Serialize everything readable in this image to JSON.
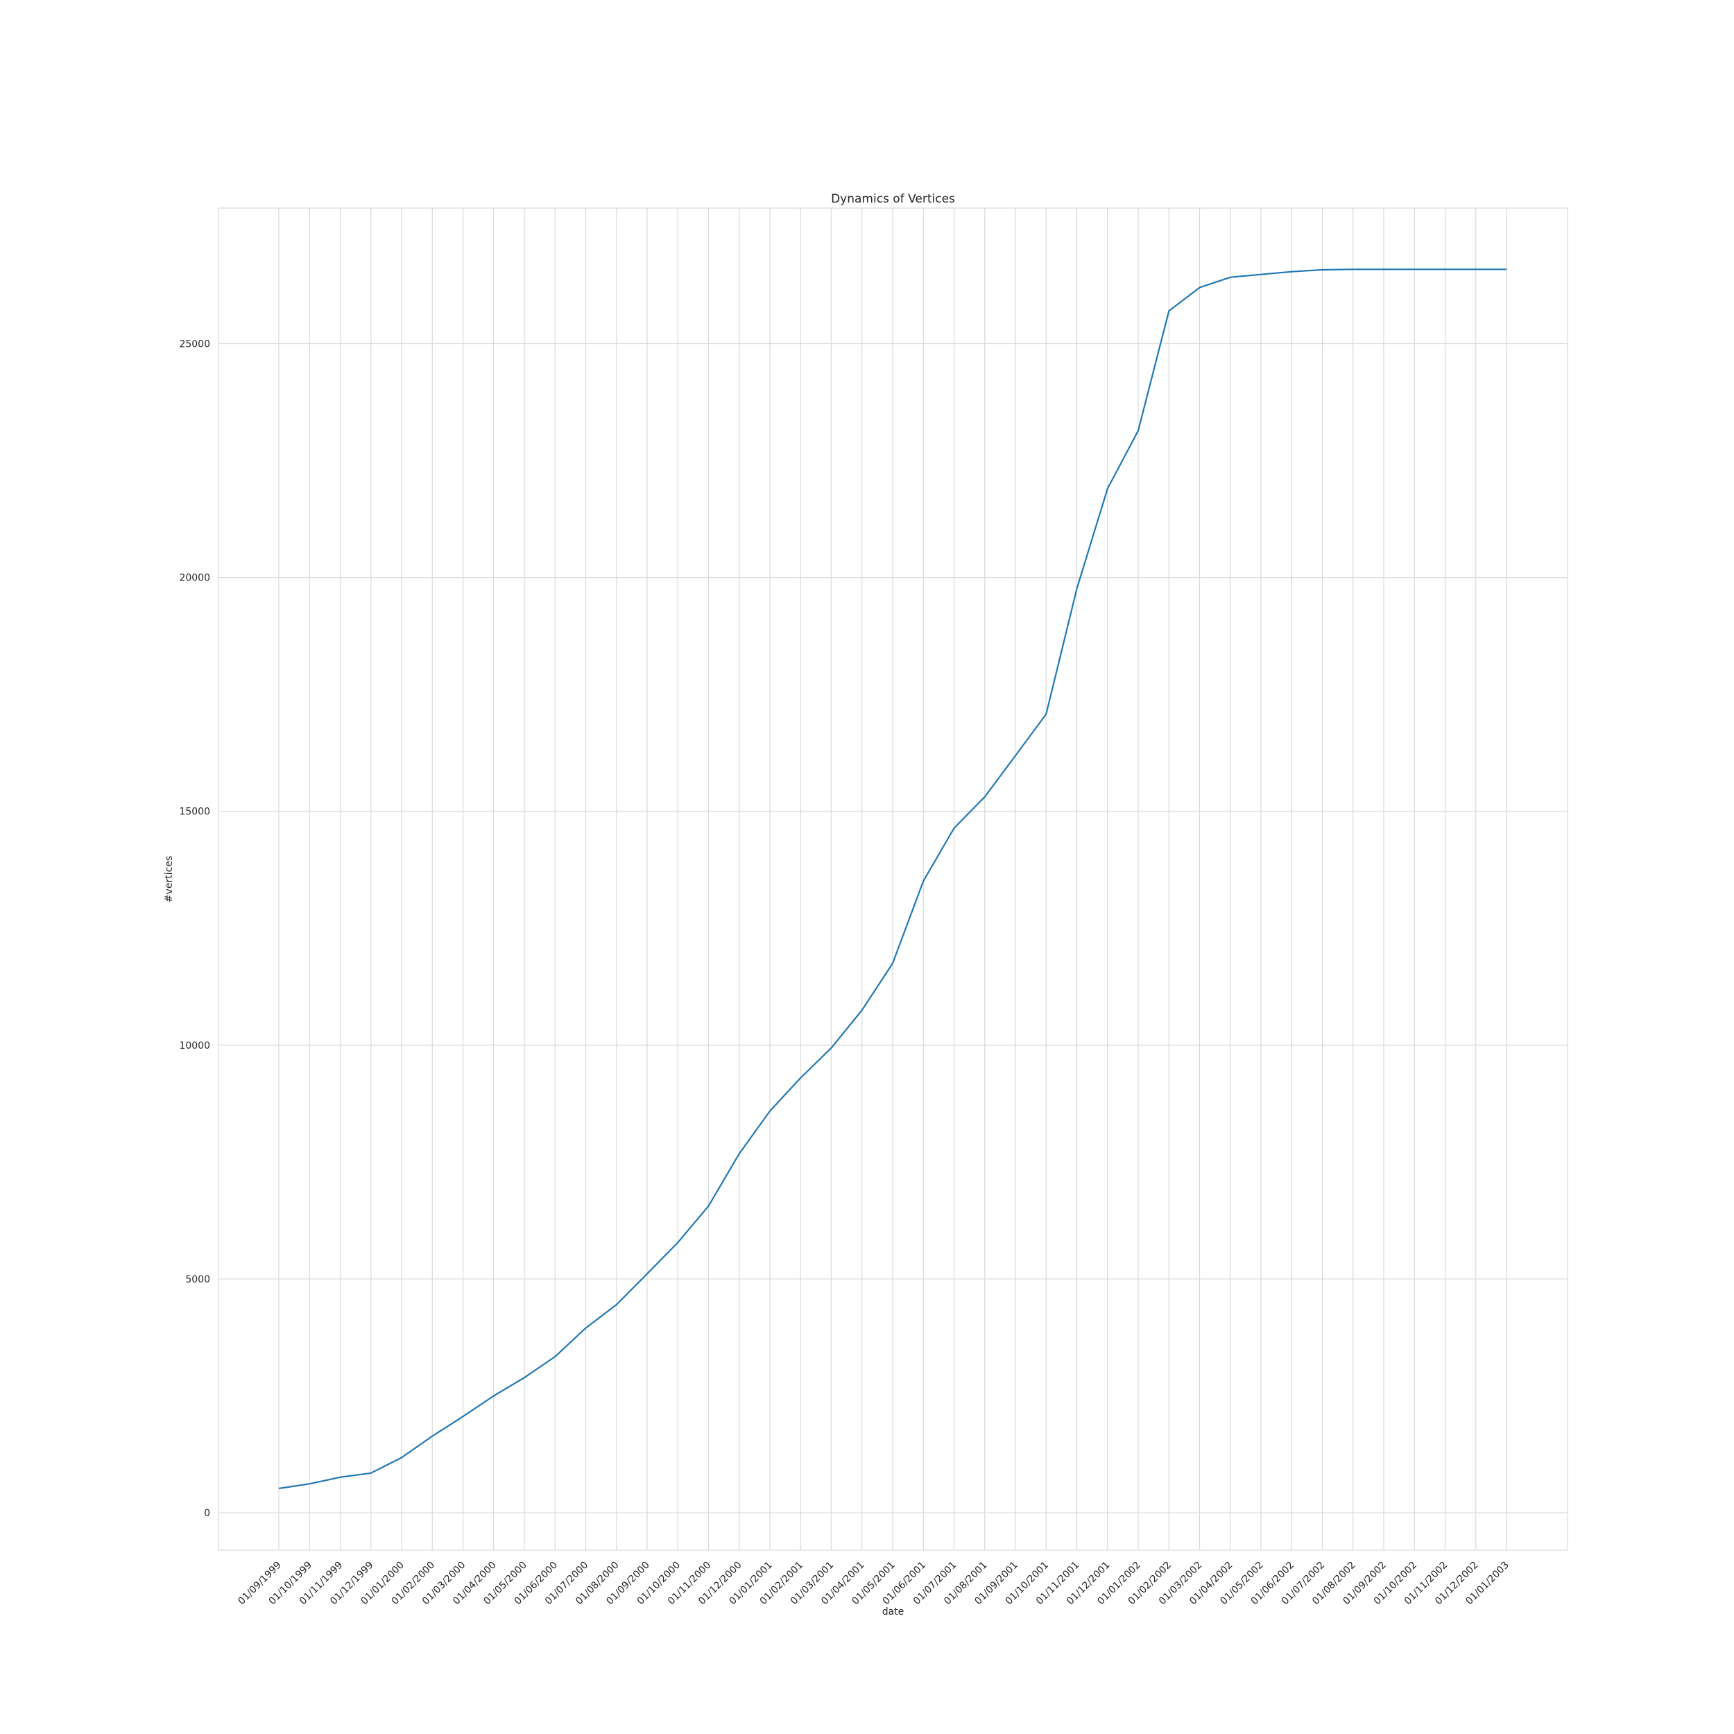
{
  "chart_data": {
    "type": "line",
    "title": "Dynamics of Vertices",
    "xlabel": "date",
    "ylabel": "#vertices",
    "x": [
      "01/09/1999",
      "01/10/1999",
      "01/11/1999",
      "01/12/1999",
      "01/01/2000",
      "01/02/2000",
      "01/03/2000",
      "01/04/2000",
      "01/05/2000",
      "01/06/2000",
      "01/07/2000",
      "01/08/2000",
      "01/09/2000",
      "01/10/2000",
      "01/11/2000",
      "01/12/2000",
      "01/01/2001",
      "01/02/2001",
      "01/03/2001",
      "01/04/2001",
      "01/05/2001",
      "01/06/2001",
      "01/07/2001",
      "01/08/2001",
      "01/09/2001",
      "01/10/2001",
      "01/11/2001",
      "01/12/2001",
      "01/01/2002",
      "01/02/2002",
      "01/03/2002",
      "01/04/2002",
      "01/05/2002",
      "01/06/2002",
      "01/07/2002",
      "01/08/2002",
      "01/09/2002",
      "01/10/2002",
      "01/11/2002",
      "01/12/2002",
      "01/01/2003"
    ],
    "series": [
      {
        "values": [
          520,
          620,
          760,
          850,
          1180,
          1640,
          2060,
          2500,
          2890,
          3340,
          3950,
          4450,
          5110,
          5780,
          6560,
          7680,
          8590,
          9300,
          9940,
          10750,
          11750,
          13510,
          14640,
          15310,
          16190,
          17080,
          19760,
          21900,
          23140,
          25700,
          26200,
          26420,
          26480,
          26540,
          26580,
          26590,
          26590,
          26590,
          26590,
          26590,
          26590
        ]
      }
    ],
    "yticks": [
      0,
      5000,
      10000,
      15000,
      20000,
      25000
    ],
    "ylim": [
      -800,
      27900
    ],
    "grid": true,
    "legend": "none",
    "colors": {
      "line": "#1f77b4",
      "grid": "#d9d9d9",
      "text": "#262626"
    }
  }
}
